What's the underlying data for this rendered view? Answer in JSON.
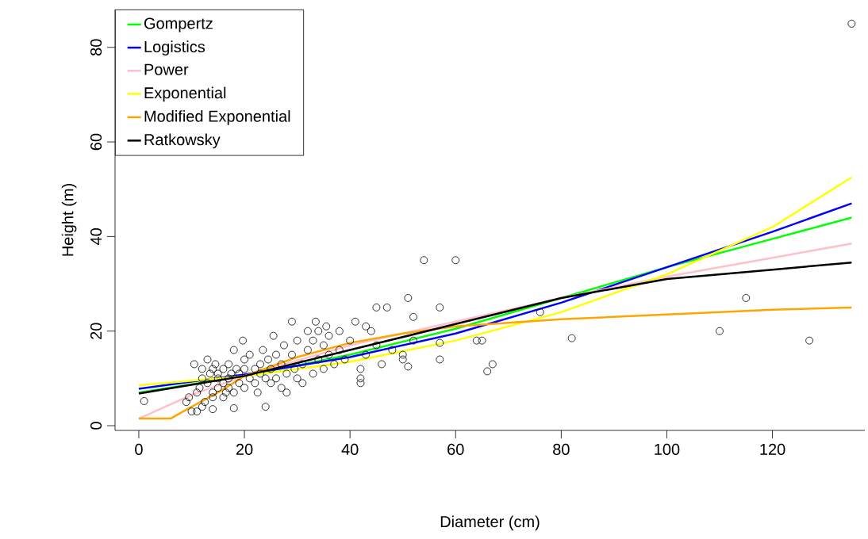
{
  "chart_data": {
    "type": "scatter",
    "xlabel": "Diameter (cm)",
    "ylabel": "Height (m)",
    "xlim": [
      -4.5,
      137.5
    ],
    "ylim": [
      -1,
      88
    ],
    "xticks": [
      0,
      20,
      40,
      60,
      80,
      100,
      120
    ],
    "yticks": [
      0,
      20,
      40,
      60,
      80
    ],
    "grid": false,
    "legend": "top left",
    "series": [
      {
        "marker": "circle",
        "color": "#000000",
        "x": [
          1,
          9,
          9.5,
          10,
          10.5,
          11,
          11,
          11.5,
          12,
          12,
          12,
          12.5,
          13,
          13,
          13.5,
          14,
          14,
          14,
          14,
          14.5,
          15,
          15,
          15,
          16,
          16,
          16,
          16.5,
          17,
          17,
          17,
          17.5,
          18,
          18,
          18,
          18.5,
          19,
          19,
          19.7,
          20,
          20,
          20,
          21,
          21,
          22,
          22,
          22.5,
          23,
          23,
          23.5,
          24,
          24,
          24.5,
          25,
          25,
          25.5,
          26,
          26,
          27,
          27,
          27.5,
          28,
          28,
          29,
          29,
          29.5,
          30,
          30,
          31,
          31,
          32,
          32,
          33,
          33,
          33.5,
          34,
          34,
          35,
          35,
          35.5,
          36,
          36,
          37,
          38,
          38,
          39,
          40,
          41,
          42,
          42,
          42,
          43,
          43,
          44,
          45,
          45,
          46,
          47,
          48,
          50,
          50,
          51,
          51,
          52,
          52,
          54,
          57,
          57,
          57,
          60,
          64,
          65,
          66,
          67,
          76,
          82,
          110,
          115,
          127,
          135
        ],
        "values": [
          5.2,
          5,
          6,
          3,
          13,
          3,
          7,
          8,
          4,
          10,
          12,
          5,
          9,
          14,
          11,
          3.5,
          6,
          7,
          12,
          13,
          8,
          10,
          11,
          6,
          9,
          12,
          7,
          8,
          10,
          13,
          11,
          3.7,
          7,
          16,
          12,
          9,
          11,
          18,
          8,
          12,
          14,
          10,
          15,
          9,
          12,
          7,
          11,
          13,
          16,
          4,
          10,
          14,
          9,
          12,
          19,
          10,
          15,
          8,
          13,
          17,
          11,
          7,
          15,
          22,
          12,
          10,
          18,
          13,
          9,
          16,
          20,
          11,
          18,
          22,
          14,
          20,
          12,
          17,
          21,
          15,
          19,
          13,
          20,
          16,
          14,
          18,
          22,
          9,
          10,
          12,
          15,
          21,
          20,
          25,
          17,
          13,
          25,
          16,
          14,
          15,
          12.5,
          27,
          23,
          18,
          35,
          25,
          14,
          17.5,
          35,
          18,
          18,
          11.5,
          13,
          24,
          18.5,
          20,
          27,
          18,
          85
        ]
      },
      {
        "type": "line",
        "name": "Gompertz",
        "color": "#00ff00",
        "x": [
          0,
          20,
          40,
          60,
          80,
          100,
          120,
          135
        ],
        "values": [
          7,
          10.5,
          15,
          20.5,
          27,
          33.5,
          39.5,
          44
        ]
      },
      {
        "type": "line",
        "name": "Logistics",
        "color": "#0000ff",
        "x": [
          0,
          20,
          40,
          60,
          80,
          100,
          120,
          135
        ],
        "values": [
          7.8,
          10.8,
          14.5,
          19.5,
          26,
          33.5,
          41,
          47
        ]
      },
      {
        "type": "line",
        "name": "Power",
        "color": "#ffc0cb",
        "x": [
          0,
          10,
          20,
          40,
          60,
          80,
          100,
          120,
          135
        ],
        "values": [
          1.5,
          6.5,
          10.5,
          17,
          22,
          27,
          31.5,
          35.5,
          38.5
        ]
      },
      {
        "type": "line",
        "name": "Exponential",
        "color": "#ffff00",
        "x": [
          0,
          20,
          40,
          60,
          80,
          100,
          120,
          135
        ],
        "values": [
          8.5,
          10.5,
          13.5,
          18,
          24,
          32,
          42,
          52.5
        ]
      },
      {
        "type": "line",
        "name": "Modified Exponential",
        "color": "#ffa500",
        "x": [
          0,
          6,
          10,
          15,
          20,
          30,
          40,
          50,
          60,
          80,
          100,
          120,
          135
        ],
        "values": [
          1.5,
          1.5,
          4,
          7,
          10.5,
          14.5,
          17.5,
          19.5,
          21,
          22.5,
          23.5,
          24.5,
          25
        ]
      },
      {
        "type": "line",
        "name": "Ratkowsky",
        "color": "#000000",
        "x": [
          0,
          20,
          40,
          60,
          80,
          100,
          120,
          135
        ],
        "values": [
          6.8,
          10.5,
          16,
          21.5,
          27,
          31,
          33,
          34.5
        ]
      }
    ]
  }
}
